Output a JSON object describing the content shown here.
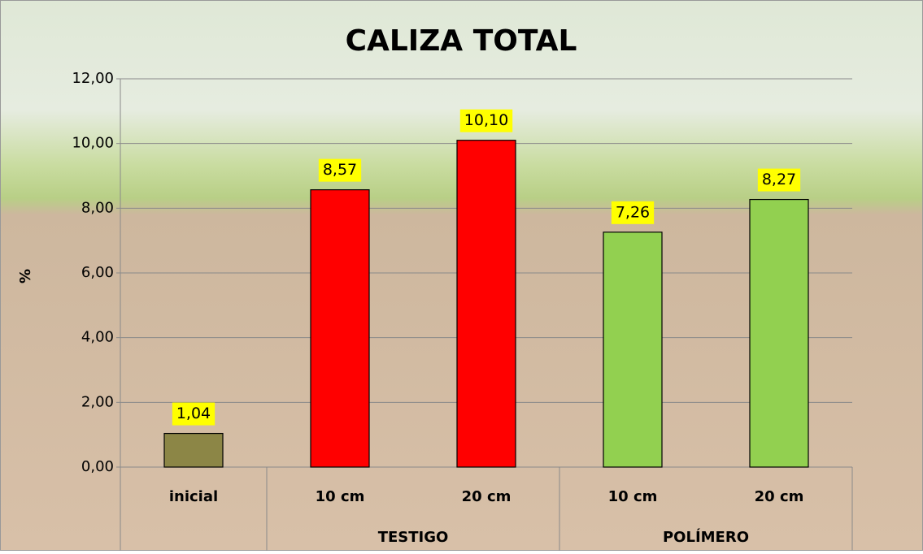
{
  "chart_data": {
    "type": "bar",
    "title": "CALIZA TOTAL",
    "y_label": "%",
    "groups": [
      {
        "categories": [
          "inicial"
        ],
        "values": [
          1.04
        ],
        "value_labels": [
          "1,04"
        ],
        "colors": [
          "#8c8646"
        ]
      },
      {
        "name": "TESTIGO",
        "categories": [
          "10 cm",
          "20 cm"
        ],
        "values": [
          8.57,
          10.1
        ],
        "value_labels": [
          "8,57",
          "10,10"
        ],
        "colors": [
          "#ff0000",
          "#ff0000"
        ]
      },
      {
        "name": "POLÍMERO",
        "categories": [
          "10 cm",
          "20 cm"
        ],
        "values": [
          7.26,
          8.27
        ],
        "value_labels": [
          "7,26",
          "8,27"
        ],
        "colors": [
          "#92d050",
          "#92d050"
        ]
      }
    ],
    "ylim": [
      0,
      12
    ],
    "yticks": [
      {
        "value": 0,
        "label": "0,00"
      },
      {
        "value": 2,
        "label": "2,00"
      },
      {
        "value": 4,
        "label": "4,00"
      },
      {
        "value": 6,
        "label": "6,00"
      },
      {
        "value": 8,
        "label": "8,00"
      },
      {
        "value": 10,
        "label": "10,00"
      },
      {
        "value": 12,
        "label": "12,00"
      }
    ],
    "grid": true,
    "value_label_background": "#ffff00"
  }
}
